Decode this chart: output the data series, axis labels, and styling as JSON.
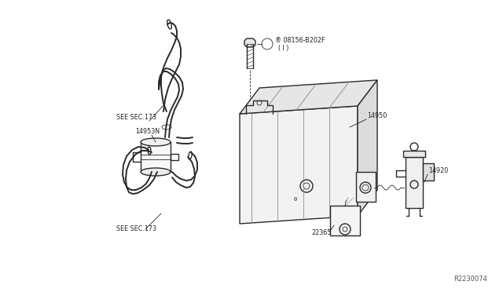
{
  "bg_color": "#ffffff",
  "lc": "#2a2a2a",
  "lw": 1.0,
  "lw_thin": 0.6,
  "lw_thick": 1.4,
  "fs": 5.8,
  "fs_wm": 6.0,
  "watermark": "R2230074",
  "labels": {
    "sec173_top": "SEE SEC.173",
    "sec173_bot": "SEE SEC.173",
    "p14953N": "14953N",
    "p14950": "14950",
    "p14920": "14920",
    "p22365": "22365",
    "bolt_line1": "® 08156-B202F",
    "bolt_line2": "( l )"
  }
}
